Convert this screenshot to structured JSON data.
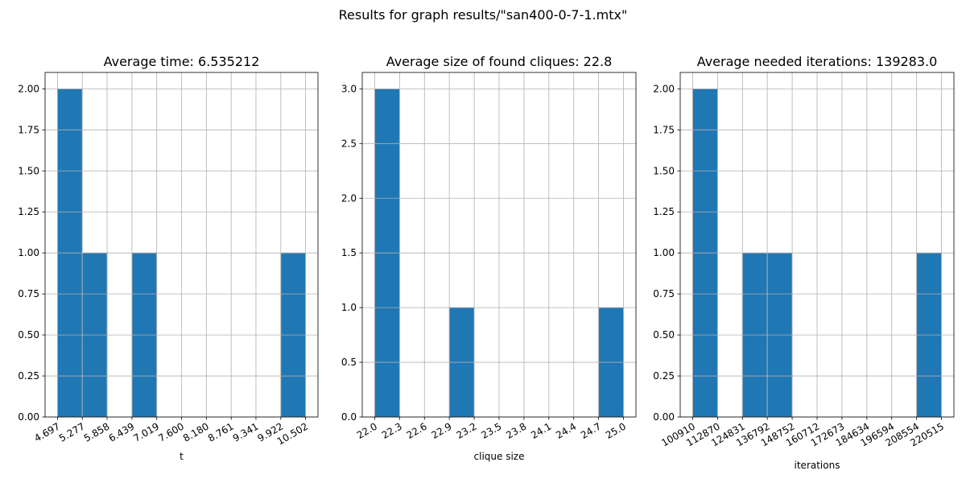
{
  "figure": {
    "suptitle": "Results for graph results/\"san400-0-7-1.mtx\""
  },
  "chart_data": [
    {
      "type": "bar",
      "title": "Average time: 6.535212",
      "xlabel": "t",
      "ylabel": "",
      "bin_edges": [
        4.697,
        5.277,
        5.858,
        6.439,
        7.019,
        7.6,
        8.18,
        8.761,
        9.341,
        9.922,
        10.502
      ],
      "xtick_labels": [
        "4.697",
        "5.277",
        "5.858",
        "6.439",
        "7.019",
        "7.600",
        "8.180",
        "8.761",
        "9.341",
        "9.922",
        "10.502"
      ],
      "values": [
        2,
        1,
        0,
        1,
        0,
        0,
        0,
        0,
        0,
        1
      ],
      "ylim": [
        0,
        2.1
      ],
      "yticks": [
        0,
        0.25,
        0.5,
        0.75,
        1.0,
        1.25,
        1.5,
        1.75,
        2.0
      ],
      "ytick_labels": [
        "0.00",
        "0.25",
        "0.50",
        "0.75",
        "1.00",
        "1.25",
        "1.50",
        "1.75",
        "2.00"
      ],
      "grid": true,
      "bar_color": "#1f77b4"
    },
    {
      "type": "bar",
      "title": "Average size of found cliques: 22.8",
      "xlabel": "clique size",
      "ylabel": "",
      "bin_edges": [
        22.0,
        22.3,
        22.6,
        22.9,
        23.2,
        23.5,
        23.8,
        24.1,
        24.4,
        24.7,
        25.0
      ],
      "xtick_labels": [
        "22.0",
        "22.3",
        "22.6",
        "22.9",
        "23.2",
        "23.5",
        "23.8",
        "24.1",
        "24.4",
        "24.7",
        "25.0"
      ],
      "values": [
        3,
        0,
        0,
        1,
        0,
        0,
        0,
        0,
        0,
        1
      ],
      "ylim": [
        0,
        3.15
      ],
      "yticks": [
        0,
        0.5,
        1.0,
        1.5,
        2.0,
        2.5,
        3.0
      ],
      "ytick_labels": [
        "0.0",
        "0.5",
        "1.0",
        "1.5",
        "2.0",
        "2.5",
        "3.0"
      ],
      "grid": true,
      "bar_color": "#1f77b4"
    },
    {
      "type": "bar",
      "title": "Average needed iterations: 139283.0",
      "xlabel": "iterations",
      "ylabel": "",
      "bin_edges": [
        100910,
        112870,
        124831,
        136792,
        148752,
        160712,
        172673,
        184634,
        196594,
        208554,
        220515
      ],
      "xtick_labels": [
        "100910",
        "112870",
        "124831",
        "136792",
        "148752",
        "160712",
        "172673",
        "184634",
        "196594",
        "208554",
        "220515"
      ],
      "values": [
        2,
        0,
        1,
        1,
        0,
        0,
        0,
        0,
        0,
        1
      ],
      "ylim": [
        0,
        2.1
      ],
      "yticks": [
        0,
        0.25,
        0.5,
        0.75,
        1.0,
        1.25,
        1.5,
        1.75,
        2.0
      ],
      "ytick_labels": [
        "0.00",
        "0.25",
        "0.50",
        "0.75",
        "1.00",
        "1.25",
        "1.50",
        "1.75",
        "2.00"
      ],
      "grid": true,
      "bar_color": "#1f77b4"
    }
  ]
}
